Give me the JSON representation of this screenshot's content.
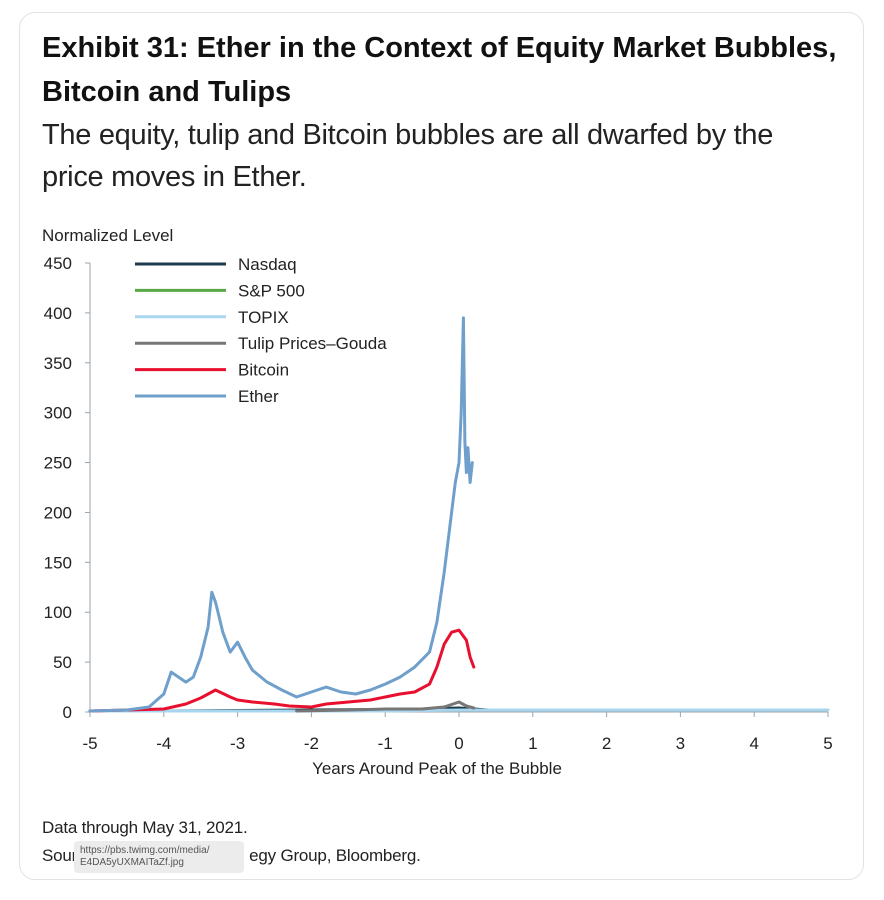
{
  "header": {
    "title": "Exhibit 31: Ether in the Context of Equity Market Bubbles, Bitcoin and Tulips",
    "subtitle": "The equity, tulip and Bitcoin bubbles are all dwarfed by the price moves in Ether."
  },
  "footer": {
    "data_note": "Data through May 31, 2021.",
    "source_note": "Source: ...egy Group, Bloomberg.",
    "source_prefix": "Sour",
    "source_suffix": "egy Group, Bloomberg.",
    "tooltip_text": "https://pbs.twimg.com/media/\nE4DA5yUXMAITaZf.jpg"
  },
  "chart_data": {
    "type": "line",
    "ylabel": "Normalized Level",
    "xlabel": "Years Around Peak of the Bubble",
    "xlim": [
      -5,
      5
    ],
    "ylim": [
      0,
      450
    ],
    "xticks": [
      -5,
      -4,
      -3,
      -2,
      -1,
      0,
      1,
      2,
      3,
      4,
      5
    ],
    "yticks": [
      0,
      50,
      100,
      150,
      200,
      250,
      300,
      350,
      400,
      450
    ],
    "grid": false,
    "legend_position": "top-left",
    "series": [
      {
        "name": "Nasdaq",
        "color": "#1b3a4b",
        "x": [
          -5,
          -4,
          -3,
          -2,
          -1,
          -0.5,
          0,
          0.2,
          0.4
        ],
        "y": [
          1,
          1,
          1.5,
          2,
          2.5,
          3,
          4,
          3,
          2
        ]
      },
      {
        "name": "S&P 500",
        "color": "#5aa845",
        "x": [
          -5,
          -4.5,
          -4,
          -3.5,
          -3
        ],
        "y": [
          1,
          1,
          1,
          1,
          1
        ]
      },
      {
        "name": "TOPIX",
        "color": "#a9d6ef",
        "x": [
          -5,
          -4,
          -3,
          -2,
          -1,
          0,
          1,
          2,
          3,
          4,
          5
        ],
        "y": [
          1,
          1,
          1,
          1,
          1,
          2,
          2,
          2,
          2,
          2,
          2
        ]
      },
      {
        "name": "Tulip Prices–Gouda",
        "color": "#777777",
        "x": [
          -2.2,
          -1.5,
          -1,
          -0.5,
          -0.2,
          0,
          0.1,
          0.2
        ],
        "y": [
          1,
          2,
          3,
          3,
          5,
          10,
          6,
          4
        ]
      },
      {
        "name": "Bitcoin",
        "color": "#e8102e",
        "x": [
          -5,
          -4.5,
          -4,
          -3.7,
          -3.5,
          -3.3,
          -3.1,
          -3,
          -2.8,
          -2.5,
          -2.3,
          -2,
          -1.8,
          -1.5,
          -1.2,
          -1,
          -0.8,
          -0.6,
          -0.4,
          -0.3,
          -0.2,
          -0.1,
          0,
          0.1,
          0.15,
          0.2
        ],
        "y": [
          1,
          2,
          3,
          8,
          14,
          22,
          15,
          12,
          10,
          8,
          6,
          5,
          8,
          10,
          12,
          15,
          18,
          20,
          28,
          45,
          68,
          80,
          82,
          72,
          55,
          45
        ]
      },
      {
        "name": "Ether",
        "color": "#6f9fcb",
        "x": [
          -5,
          -4.5,
          -4.2,
          -4,
          -3.9,
          -3.7,
          -3.6,
          -3.5,
          -3.4,
          -3.35,
          -3.3,
          -3.25,
          -3.2,
          -3.1,
          -3,
          -2.9,
          -2.8,
          -2.6,
          -2.4,
          -2.2,
          -2,
          -1.8,
          -1.6,
          -1.4,
          -1.2,
          -1,
          -0.8,
          -0.6,
          -0.4,
          -0.3,
          -0.2,
          -0.15,
          -0.1,
          -0.05,
          0,
          0.03,
          0.06,
          0.08,
          0.1,
          0.12,
          0.15,
          0.18
        ],
        "y": [
          1,
          2,
          5,
          18,
          40,
          30,
          35,
          55,
          85,
          120,
          110,
          95,
          80,
          60,
          70,
          55,
          42,
          30,
          22,
          15,
          20,
          25,
          20,
          18,
          22,
          28,
          35,
          45,
          60,
          90,
          140,
          170,
          200,
          230,
          250,
          300,
          395,
          270,
          240,
          265,
          230,
          250
        ]
      }
    ]
  }
}
